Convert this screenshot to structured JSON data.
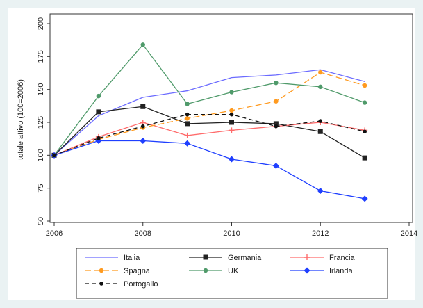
{
  "chart_data": {
    "type": "line",
    "title": "",
    "xlabel": "",
    "ylabel": "totale attivo (100=2006)",
    "xlim": [
      2006,
      2014
    ],
    "ylim": [
      50,
      200
    ],
    "xticks": [
      "2006",
      "2008",
      "2010",
      "2012",
      "2014"
    ],
    "yticks": [
      "50",
      "75",
      "100",
      "125",
      "150",
      "175",
      "200"
    ],
    "grid": false,
    "legend_position": "bottom",
    "x": [
      2006,
      2007,
      2008,
      2009,
      2010,
      2011,
      2012,
      2013
    ],
    "series": [
      {
        "name": "Italia",
        "color": "#6b6bff",
        "marker": "none",
        "dash": "solid",
        "values": [
          100,
          130,
          144,
          149,
          159,
          161,
          165,
          156
        ]
      },
      {
        "name": "Germania",
        "color": "#222222",
        "marker": "square",
        "dash": "solid",
        "values": [
          100,
          133,
          137,
          124,
          125,
          124,
          118,
          98
        ]
      },
      {
        "name": "Francia",
        "color": "#ff6b6b",
        "marker": "plus",
        "dash": "solid",
        "values": [
          100,
          114,
          125,
          115,
          119,
          122,
          125,
          119
        ]
      },
      {
        "name": "Spagna",
        "color": "#ff9a1f",
        "marker": "circle",
        "dash": "longdash",
        "values": [
          100,
          112,
          121,
          128,
          134,
          141,
          163,
          153
        ]
      },
      {
        "name": "UK",
        "color": "#4f9a6a",
        "marker": "circle",
        "dash": "solid",
        "values": [
          100,
          145,
          184,
          139,
          148,
          155,
          152,
          140
        ]
      },
      {
        "name": "Irlanda",
        "color": "#1f3fff",
        "marker": "diamond",
        "dash": "solid",
        "values": [
          100,
          111,
          111,
          109,
          97,
          92,
          73,
          67
        ]
      },
      {
        "name": "Portogallo",
        "color": "#111111",
        "marker": "dot",
        "dash": "dash",
        "values": [
          100,
          113,
          122,
          131,
          131,
          122,
          126,
          118
        ]
      }
    ]
  }
}
